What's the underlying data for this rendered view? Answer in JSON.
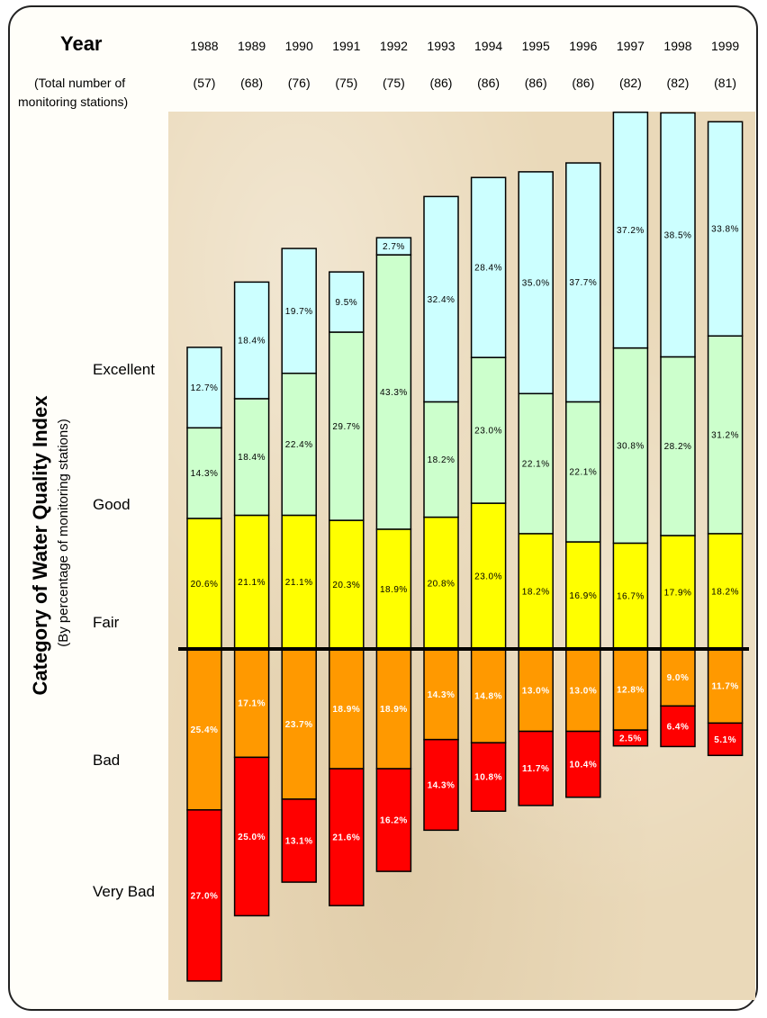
{
  "header": {
    "year_label": "Year",
    "stations_label_line1": "(Total number of",
    "stations_label_line2": "monitoring stations)"
  },
  "axis": {
    "title": "Category of Water Quality Index",
    "subtitle": "(By percentage of monitoring stations)"
  },
  "categories_legend": [
    "Excellent",
    "Good",
    "Fair",
    "Bad",
    "Very Bad"
  ],
  "colors": {
    "Excellent": "#ccffff",
    "Good": "#ccffcc",
    "Fair": "#ffff00",
    "Bad": "#ff9900",
    "Very Bad": "#ff0000"
  },
  "chart_data": {
    "type": "bar",
    "stacked": "diverging",
    "categories": [
      "1988",
      "1989",
      "1990",
      "1991",
      "1992",
      "1993",
      "1994",
      "1995",
      "1996",
      "1997",
      "1998",
      "1999"
    ],
    "stations": [
      "(57)",
      "(68)",
      "(76)",
      "(75)",
      "(75)",
      "(86)",
      "(86)",
      "(86)",
      "(86)",
      "(82)",
      "(82)",
      "(81)"
    ],
    "series": [
      {
        "name": "Excellent",
        "values": [
          12.7,
          18.4,
          19.7,
          9.5,
          2.7,
          32.4,
          28.4,
          35.0,
          37.7,
          37.2,
          38.5,
          33.8
        ]
      },
      {
        "name": "Good",
        "values": [
          14.3,
          18.4,
          22.4,
          29.7,
          43.3,
          18.2,
          23.0,
          22.1,
          22.1,
          30.8,
          28.2,
          31.2
        ]
      },
      {
        "name": "Fair",
        "values": [
          20.6,
          21.1,
          21.1,
          20.3,
          18.9,
          20.8,
          23.0,
          18.2,
          16.9,
          16.7,
          17.9,
          18.2
        ]
      },
      {
        "name": "Bad",
        "values": [
          25.4,
          17.1,
          23.7,
          18.9,
          18.9,
          14.3,
          14.8,
          13.0,
          13.0,
          12.8,
          9.0,
          11.7
        ]
      },
      {
        "name": "Very Bad",
        "values": [
          27.0,
          25.0,
          13.1,
          21.6,
          16.2,
          14.3,
          10.8,
          11.7,
          10.4,
          2.5,
          6.4,
          5.1
        ]
      }
    ],
    "labels": [
      [
        "12.7%",
        "18.4%",
        "19.7%",
        "9.5%",
        "2.7%",
        "32.4%",
        "28.4%",
        "35.0%",
        "37.7%",
        "37.2%",
        "38.5%",
        "33.8%"
      ],
      [
        "14.3%",
        "18.4%",
        "22.4%",
        "29.7%",
        "43.3%",
        "18.2%",
        "23.0%",
        "22.1%",
        "22.1%",
        "30.8%",
        "28.2%",
        "31.2%"
      ],
      [
        "20.6%",
        "21.1%",
        "21.1%",
        "20.3%",
        "18.9%",
        "20.8%",
        "23.0%",
        "18.2%",
        "16.9%",
        "16.7%",
        "17.9%",
        "18.2%"
      ],
      [
        "25.4%",
        "17.1%",
        "23.7%",
        "18.9%",
        "18.9%",
        "14.3%",
        "14.8%",
        "13.0%",
        "13.0%",
        "12.8%",
        "9.0%",
        "11.7%"
      ],
      [
        "27.0%",
        "25.0%",
        "13.1%",
        "21.6%",
        "16.2%",
        "14.3%",
        "10.8%",
        "11.7%",
        "10.4%",
        "2.5%",
        "6.4%",
        "5.1%"
      ]
    ],
    "baseline": "between Fair and Bad",
    "xlabel": "Year",
    "ylabel": "Category of Water Quality Index"
  }
}
